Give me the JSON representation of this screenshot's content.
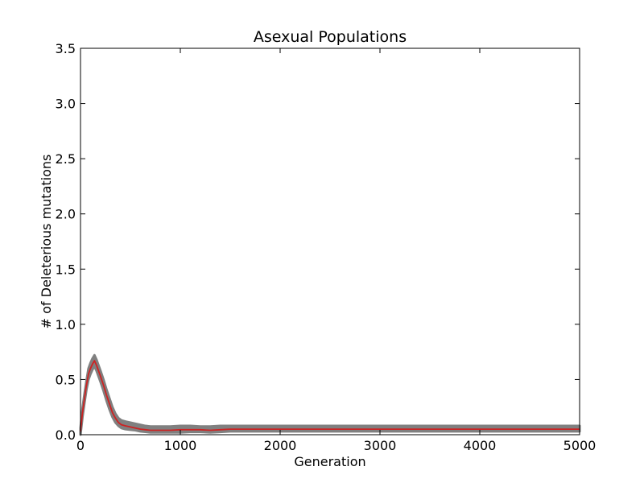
{
  "chart_data": {
    "type": "line",
    "title": "Asexual Populations",
    "xlabel": "Generation",
    "ylabel": "# of Deleterious mutations",
    "xlim": [
      0,
      5000
    ],
    "ylim": [
      0,
      3.5
    ],
    "x_ticks": [
      0,
      1000,
      2000,
      3000,
      4000,
      5000
    ],
    "y_ticks": [
      0.0,
      0.5,
      1.0,
      1.5,
      2.0,
      2.5,
      3.0,
      3.5
    ],
    "x_tick_labels": [
      "0",
      "1000",
      "2000",
      "3000",
      "4000",
      "5000"
    ],
    "y_tick_labels": [
      "0.0",
      "0.5",
      "1.0",
      "1.5",
      "2.0",
      "2.5",
      "3.0",
      "3.5"
    ],
    "grid": false,
    "colors": {
      "mean_line": "#cc2222",
      "band": "#808080"
    },
    "series": [
      {
        "kind": "mean",
        "x": [
          0,
          20,
          40,
          60,
          80,
          100,
          120,
          140,
          160,
          180,
          200,
          230,
          260,
          290,
          320,
          350,
          380,
          410,
          450,
          500,
          550,
          600,
          650,
          700,
          750,
          800,
          900,
          1000,
          1100,
          1200,
          1300,
          1400,
          1500,
          2000,
          3000,
          4000,
          5000
        ],
        "y": [
          0.03,
          0.2,
          0.33,
          0.45,
          0.55,
          0.6,
          0.64,
          0.67,
          0.63,
          0.58,
          0.53,
          0.45,
          0.36,
          0.28,
          0.2,
          0.15,
          0.11,
          0.09,
          0.08,
          0.07,
          0.06,
          0.05,
          0.045,
          0.04,
          0.04,
          0.04,
          0.04,
          0.045,
          0.045,
          0.045,
          0.04,
          0.045,
          0.05,
          0.05,
          0.05,
          0.05,
          0.05
        ]
      },
      {
        "kind": "band",
        "x": [
          0,
          20,
          40,
          60,
          80,
          100,
          120,
          140,
          160,
          180,
          200,
          230,
          260,
          290,
          320,
          350,
          380,
          410,
          450,
          500,
          550,
          600,
          650,
          700,
          750,
          800,
          900,
          1000,
          1100,
          1200,
          1300,
          1400,
          1500,
          2000,
          3000,
          4000,
          5000
        ],
        "lower": [
          0.0,
          0.16,
          0.29,
          0.41,
          0.5,
          0.55,
          0.59,
          0.62,
          0.58,
          0.53,
          0.48,
          0.4,
          0.31,
          0.23,
          0.16,
          0.11,
          0.08,
          0.06,
          0.05,
          0.045,
          0.04,
          0.03,
          0.025,
          0.02,
          0.02,
          0.02,
          0.02,
          0.02,
          0.025,
          0.025,
          0.02,
          0.025,
          0.03,
          0.03,
          0.03,
          0.03,
          0.03
        ],
        "upper": [
          0.06,
          0.24,
          0.37,
          0.49,
          0.6,
          0.65,
          0.69,
          0.72,
          0.68,
          0.63,
          0.58,
          0.5,
          0.41,
          0.33,
          0.25,
          0.19,
          0.15,
          0.13,
          0.12,
          0.11,
          0.1,
          0.09,
          0.08,
          0.075,
          0.075,
          0.075,
          0.075,
          0.08,
          0.08,
          0.075,
          0.075,
          0.08,
          0.08,
          0.08,
          0.08,
          0.08,
          0.08
        ]
      }
    ]
  }
}
